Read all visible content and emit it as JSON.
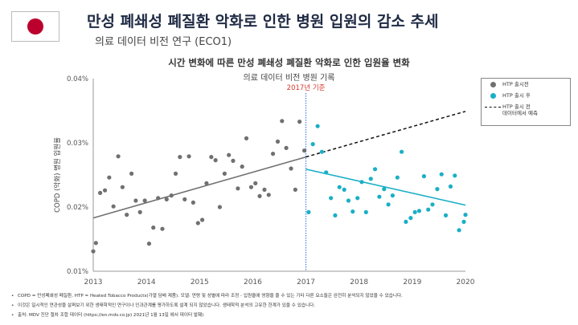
{
  "header": {
    "title": "만성 폐쇄성 폐질환 악화로 인한 병원 입원의 감소 추세",
    "subtitle": "의료 데이터 비전 연구 (ECO1)",
    "flag_colors": {
      "field": "#ffffff",
      "sun": "#bc002d"
    }
  },
  "chart_data": {
    "type": "scatter",
    "title": "시간 변화에 따른 만성 폐쇄성 폐질환 악화로 인한 입원율 변화",
    "subtitle": "의료 데이터 비전 병원 기록",
    "xlabel": "",
    "ylabel": "COPD (악화) 병원 입원율",
    "xlim": [
      2013,
      2020
    ],
    "ylim": [
      0.01,
      0.04
    ],
    "x_ticks": [
      "2013",
      "2014",
      "2015",
      "2016",
      "2017",
      "2018",
      "2019",
      "2020"
    ],
    "y_ticks": [
      "0.01%",
      "0.02%",
      "0.03%",
      "0.04%"
    ],
    "grid": false,
    "legend_position": "top-right",
    "annotation": {
      "text": "2017년 기준",
      "x": 2017.0
    },
    "series": [
      {
        "name": "HTP 출시전",
        "color": "#707070",
        "points": [
          [
            2013.0,
            0.0131
          ],
          [
            2013.05,
            0.0144
          ],
          [
            2013.13,
            0.0222
          ],
          [
            2013.22,
            0.0226
          ],
          [
            2013.3,
            0.0246
          ],
          [
            2013.38,
            0.0201
          ],
          [
            2013.47,
            0.0279
          ],
          [
            2013.55,
            0.0231
          ],
          [
            2013.63,
            0.0188
          ],
          [
            2013.72,
            0.0252
          ],
          [
            2013.8,
            0.021
          ],
          [
            2013.88,
            0.0192
          ],
          [
            2013.97,
            0.021
          ],
          [
            2014.05,
            0.0143
          ],
          [
            2014.13,
            0.0168
          ],
          [
            2014.22,
            0.0214
          ],
          [
            2014.3,
            0.0166
          ],
          [
            2014.38,
            0.0212
          ],
          [
            2014.47,
            0.0218
          ],
          [
            2014.55,
            0.0252
          ],
          [
            2014.63,
            0.0278
          ],
          [
            2014.72,
            0.0212
          ],
          [
            2014.8,
            0.0279
          ],
          [
            2014.88,
            0.0207
          ],
          [
            2014.97,
            0.0175
          ],
          [
            2015.05,
            0.018
          ],
          [
            2015.13,
            0.0237
          ],
          [
            2015.22,
            0.0278
          ],
          [
            2015.3,
            0.0273
          ],
          [
            2015.38,
            0.02
          ],
          [
            2015.47,
            0.0252
          ],
          [
            2015.55,
            0.0281
          ],
          [
            2015.63,
            0.0272
          ],
          [
            2015.72,
            0.0229
          ],
          [
            2015.8,
            0.0263
          ],
          [
            2015.88,
            0.0307
          ],
          [
            2015.97,
            0.0231
          ],
          [
            2016.05,
            0.0237
          ],
          [
            2016.13,
            0.0217
          ],
          [
            2016.22,
            0.0227
          ],
          [
            2016.3,
            0.0219
          ],
          [
            2016.38,
            0.0283
          ],
          [
            2016.47,
            0.0302
          ],
          [
            2016.55,
            0.0334
          ],
          [
            2016.63,
            0.0292
          ],
          [
            2016.72,
            0.026
          ],
          [
            2016.8,
            0.0227
          ],
          [
            2016.88,
            0.0333
          ],
          [
            2016.97,
            0.0288
          ]
        ]
      },
      {
        "name": "HTP 출시 후",
        "color": "#1aafc6",
        "points": [
          [
            2017.05,
            0.0192
          ],
          [
            2017.13,
            0.0298
          ],
          [
            2017.22,
            0.0326
          ],
          [
            2017.3,
            0.0286
          ],
          [
            2017.38,
            0.0254
          ],
          [
            2017.47,
            0.0214
          ],
          [
            2017.55,
            0.0187
          ],
          [
            2017.63,
            0.0231
          ],
          [
            2017.72,
            0.0227
          ],
          [
            2017.8,
            0.021
          ],
          [
            2017.88,
            0.0193
          ],
          [
            2017.97,
            0.0214
          ],
          [
            2018.05,
            0.0239
          ],
          [
            2018.13,
            0.0192
          ],
          [
            2018.22,
            0.0244
          ],
          [
            2018.3,
            0.0259
          ],
          [
            2018.38,
            0.0216
          ],
          [
            2018.47,
            0.0228
          ],
          [
            2018.55,
            0.0204
          ],
          [
            2018.63,
            0.0218
          ],
          [
            2018.72,
            0.0246
          ],
          [
            2018.8,
            0.0286
          ],
          [
            2018.88,
            0.0177
          ],
          [
            2018.97,
            0.0183
          ],
          [
            2019.05,
            0.0192
          ],
          [
            2019.13,
            0.0194
          ],
          [
            2019.22,
            0.0248
          ],
          [
            2019.3,
            0.0196
          ],
          [
            2019.38,
            0.0204
          ],
          [
            2019.47,
            0.0228
          ],
          [
            2019.55,
            0.0251
          ],
          [
            2019.63,
            0.0187
          ],
          [
            2019.72,
            0.0232
          ],
          [
            2019.8,
            0.0249
          ],
          [
            2019.88,
            0.0164
          ],
          [
            2019.97,
            0.0177
          ],
          [
            2020.0,
            0.0188
          ]
        ]
      },
      {
        "name": "HTP 출시 전 데이터에서 예측",
        "line_style": "dashed",
        "color": "#111111",
        "points": [
          [
            2017.0,
            0.0278
          ],
          [
            2020.0,
            0.0349
          ]
        ]
      }
    ],
    "trend_lines": [
      {
        "series": "HTP 출시전",
        "color": "#707070",
        "points": [
          [
            2013.0,
            0.0183
          ],
          [
            2017.0,
            0.0278
          ]
        ]
      },
      {
        "series": "HTP 출시 후",
        "color": "#1aafc6",
        "points": [
          [
            2017.0,
            0.0259
          ],
          [
            2020.0,
            0.0203
          ]
        ]
      }
    ],
    "colors": {
      "axis": "#999999",
      "reference_line": "#2c6fd8",
      "annotation": "#d9342b",
      "tick_label": "#555555"
    }
  },
  "legend": {
    "pre": "HTP 출시전",
    "post": "HTP 출시 후",
    "pred_line1": "HTP 출시 전",
    "pred_line2": "데이터에서 예측"
  },
  "notes": [
    "COPD = 만성폐쇄성 폐질환, HTP = Heated Tobacco Products(가열 담배 제품). 모델: 연령 및 성별에 따라 조정 - 입원율에 영향을 줄 수 있는 기타 다른 요소들은 완전히 분석되지 않았을 수 있습니다.",
    "이것은 일시적인 연관성을 살펴보기 위한 생태학적인 연구이나 인과관계를 평가하도록 설계 되지 않았습니다. 생태학적 분석의 고유한 한계가 있을 수 있습니다.",
    "출처: MDV 진단 절차 조합 데이터 (https://en.mdv.co.jp) 2021년 1월 13일 에서 데이터 발췌)"
  ]
}
